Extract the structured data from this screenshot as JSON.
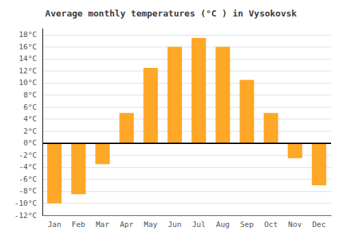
{
  "chart_data": {
    "type": "bar",
    "title": "Average monthly temperatures (°C ) in Vysokovsk",
    "categories": [
      "Jan",
      "Feb",
      "Mar",
      "Apr",
      "May",
      "Jun",
      "Jul",
      "Aug",
      "Sep",
      "Oct",
      "Nov",
      "Dec"
    ],
    "values": [
      -10,
      -8.5,
      -3.5,
      5,
      12.5,
      16,
      17.5,
      16,
      10.5,
      5,
      -2.5,
      -7
    ],
    "color": "#FFA726",
    "ylim": [
      -12,
      19
    ],
    "yticks": [
      {
        "value": -12,
        "label": "-12°C"
      },
      {
        "value": -10,
        "label": "-10°C"
      },
      {
        "value": -8,
        "label": "-8°C"
      },
      {
        "value": -6,
        "label": "-6°C"
      },
      {
        "value": -4,
        "label": "-4°C"
      },
      {
        "value": -2,
        "label": "-2°C"
      },
      {
        "value": 0,
        "label": "0°C"
      },
      {
        "value": 2,
        "label": "2°C"
      },
      {
        "value": 4,
        "label": "4°C"
      },
      {
        "value": 6,
        "label": "6°C"
      },
      {
        "value": 8,
        "label": "8°C"
      },
      {
        "value": 10,
        "label": "10°C"
      },
      {
        "value": 12,
        "label": "12°C"
      },
      {
        "value": 14,
        "label": "14°C"
      },
      {
        "value": 16,
        "label": "16°C"
      },
      {
        "value": 18,
        "label": "18°C"
      }
    ],
    "grid": true
  }
}
